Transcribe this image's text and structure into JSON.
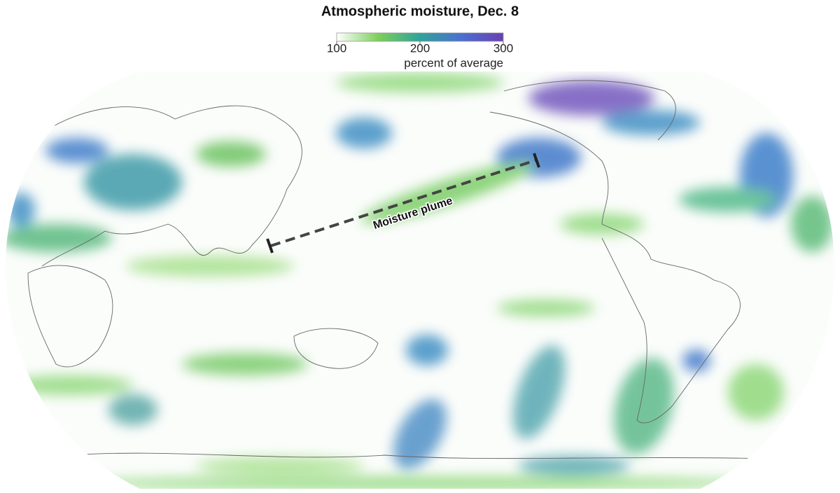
{
  "title": "Atmospheric moisture, Dec. 8",
  "legend": {
    "range": [
      100,
      300
    ],
    "ticks": [
      100,
      200,
      300
    ],
    "unit_label": "percent of average",
    "colors": [
      "#ffffff",
      "#7ccf5a",
      "#2ea39a",
      "#4b6fd1",
      "#6a3fb0"
    ]
  },
  "annotation": "Moisture plume"
}
